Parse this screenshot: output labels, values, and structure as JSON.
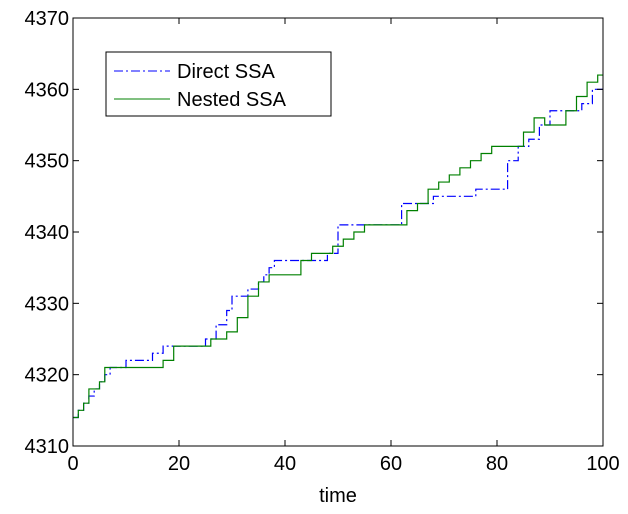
{
  "chart_data": {
    "type": "line",
    "title": "",
    "xlabel": "time",
    "ylabel": "",
    "xlim": [
      0,
      100
    ],
    "ylim": [
      4310,
      4370
    ],
    "xticks": [
      0,
      20,
      40,
      60,
      80,
      100
    ],
    "yticks": [
      4310,
      4320,
      4330,
      4340,
      4350,
      4360,
      4370
    ],
    "grid": false,
    "legend": "top-left",
    "series": [
      {
        "name": "Direct SSA",
        "color": "#0000ff",
        "style": "dash-dot",
        "step": true,
        "x": [
          0,
          1,
          2,
          3,
          4,
          5,
          6,
          7,
          10,
          15,
          17,
          25,
          27,
          29,
          30,
          33,
          35,
          36,
          37,
          38,
          40,
          44,
          48,
          50,
          52,
          58,
          62,
          66,
          68,
          72,
          76,
          80,
          82,
          84,
          86,
          88,
          90,
          92,
          96,
          98,
          100
        ],
        "y": [
          4314,
          4315,
          4316,
          4317,
          4318,
          4319,
          4320,
          4321,
          4322,
          4323,
          4324,
          4325,
          4327,
          4329,
          4331,
          4332,
          4333,
          4334,
          4335,
          4336,
          4336,
          4336,
          4337,
          4341,
          4341,
          4341,
          4344,
          4344,
          4345,
          4345,
          4346,
          4346,
          4350,
          4352,
          4353,
          4355,
          4357,
          4357,
          4358,
          4360,
          4360
        ]
      },
      {
        "name": "Nested SSA",
        "color": "#008000",
        "style": "solid",
        "step": true,
        "x": [
          0,
          1,
          2,
          3,
          5,
          6,
          17,
          19,
          26,
          29,
          31,
          33,
          35,
          37,
          43,
          45,
          49,
          51,
          53,
          55,
          57,
          63,
          65,
          67,
          69,
          71,
          73,
          75,
          77,
          79,
          85,
          87,
          89,
          93,
          95,
          97,
          99,
          100
        ],
        "y": [
          4314,
          4315,
          4316,
          4318,
          4319,
          4321,
          4322,
          4324,
          4325,
          4326,
          4328,
          4331,
          4333,
          4334,
          4336,
          4337,
          4338,
          4339,
          4340,
          4341,
          4341,
          4343,
          4344,
          4346,
          4347,
          4348,
          4349,
          4350,
          4351,
          4352,
          4354,
          4356,
          4355,
          4357,
          4359,
          4361,
          4362,
          4362
        ]
      }
    ]
  }
}
